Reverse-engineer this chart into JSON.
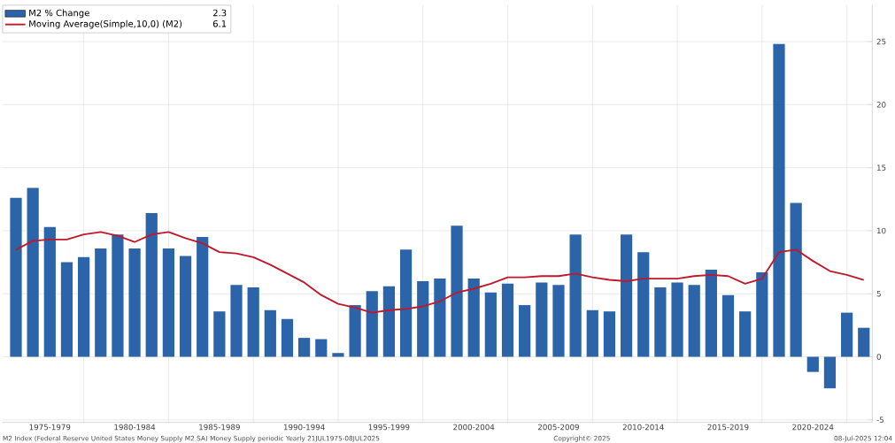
{
  "chart_data": {
    "type": "bar",
    "categories": [
      null,
      null,
      "1975-1979",
      null,
      null,
      null,
      null,
      "1980-1984",
      null,
      null,
      null,
      null,
      "1985-1989",
      null,
      null,
      null,
      null,
      "1990-1994",
      null,
      null,
      null,
      null,
      "1995-1999",
      null,
      null,
      null,
      null,
      "2000-2004",
      null,
      null,
      null,
      null,
      "2005-2009",
      null,
      null,
      null,
      null,
      "2010-2014",
      null,
      null,
      null,
      null,
      "2015-2019",
      null,
      null,
      null,
      null,
      "2020-2024",
      null,
      null,
      null
    ],
    "series": [
      {
        "name": "M2 % Change",
        "color": "#2b64a9",
        "values": [
          12.6,
          13.4,
          10.3,
          7.5,
          7.9,
          8.6,
          9.7,
          8.6,
          11.4,
          8.6,
          8.0,
          9.5,
          3.6,
          5.7,
          5.5,
          3.7,
          3.0,
          1.5,
          1.4,
          0.3,
          4.1,
          5.2,
          5.6,
          8.5,
          6.0,
          6.2,
          10.4,
          6.2,
          5.1,
          5.8,
          4.1,
          5.9,
          5.7,
          9.7,
          3.7,
          3.6,
          9.7,
          8.3,
          5.5,
          5.9,
          5.7,
          6.9,
          4.9,
          3.6,
          6.7,
          24.8,
          12.2,
          -1.2,
          -2.5,
          3.5,
          2.3
        ]
      },
      {
        "name": "Moving Average(Simple,10,0) (M2)",
        "type": "line",
        "color": "#c0182a",
        "values": [
          8.5,
          9.2,
          9.3,
          9.3,
          9.7,
          9.9,
          9.6,
          9.1,
          9.7,
          9.9,
          9.4,
          9.0,
          8.3,
          8.2,
          7.9,
          7.3,
          6.6,
          5.9,
          4.9,
          4.2,
          3.9,
          3.5,
          3.7,
          3.8,
          4.0,
          4.4,
          5.1,
          5.4,
          5.8,
          6.3,
          6.3,
          6.4,
          6.4,
          6.6,
          6.3,
          6.1,
          6.0,
          6.2,
          6.2,
          6.2,
          6.4,
          6.5,
          6.4,
          5.8,
          6.2,
          8.3,
          8.5,
          7.6,
          6.8,
          6.5,
          6.1
        ]
      }
    ],
    "ylim": [
      -5.2,
      27.9
    ],
    "yticks": [
      -5,
      0,
      5,
      10,
      15,
      20,
      25
    ],
    "grid": true,
    "legend": "top left",
    "marker": "none",
    "annotations": [
      "2.3",
      "6.1",
      "M2 Index (Federal Reserve United States Money Supply M2 SA) Money Supply periodic  Yearly 21JUL1975-08JUL2025",
      "Copyright© 2025",
      "08-Jul-2025 12:04"
    ]
  }
}
